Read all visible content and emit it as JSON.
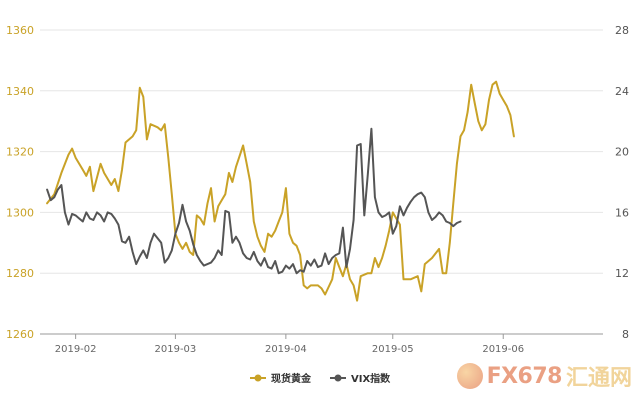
{
  "colors": {
    "gold": "#c9a227",
    "vix": "#555555",
    "grid": "#e6e6e6",
    "axis_left_labels": "#c9a227",
    "axis_right_labels": "#555555"
  },
  "watermark": {
    "logo": "fx678-logo-icon",
    "text": "FX678",
    "cn": "汇通网"
  },
  "chart_data": {
    "type": "line",
    "title": "",
    "xlabel": "",
    "ylabel_left": "",
    "ylabel_right": "",
    "grid": "horizontal",
    "legend_position": "bottom-center",
    "x_ticks": [
      {
        "label": "2019-02",
        "t": 10
      },
      {
        "label": "2019-03",
        "t": 38
      },
      {
        "label": "2019-04",
        "t": 69
      },
      {
        "label": "2019-05",
        "t": 99
      },
      {
        "label": "2019-06",
        "t": 130
      }
    ],
    "x_range": [
      0,
      158
    ],
    "y_left": {
      "ticks": [
        1260,
        1280,
        1300,
        1320,
        1340,
        1360
      ],
      "range": [
        1260,
        1360
      ]
    },
    "y_right": {
      "ticks": [
        8,
        12,
        16,
        20,
        24,
        28
      ],
      "range": [
        8,
        28
      ]
    },
    "series": [
      {
        "name": "现货黄金",
        "axis": "left",
        "points": [
          [
            2,
            1303
          ],
          [
            4,
            1306
          ],
          [
            6,
            1313
          ],
          [
            8,
            1319
          ],
          [
            9,
            1321
          ],
          [
            10,
            1318
          ],
          [
            12,
            1314
          ],
          [
            13,
            1312
          ],
          [
            14,
            1315
          ],
          [
            15,
            1307
          ],
          [
            17,
            1316
          ],
          [
            18,
            1313
          ],
          [
            20,
            1309
          ],
          [
            21,
            1311
          ],
          [
            22,
            1307
          ],
          [
            23,
            1314
          ],
          [
            24,
            1323
          ],
          [
            26,
            1325
          ],
          [
            27,
            1327
          ],
          [
            28,
            1341
          ],
          [
            29,
            1338
          ],
          [
            30,
            1324
          ],
          [
            31,
            1329
          ],
          [
            33,
            1328
          ],
          [
            34,
            1327
          ],
          [
            35,
            1329
          ],
          [
            36,
            1318
          ],
          [
            37,
            1306
          ],
          [
            38,
            1293
          ],
          [
            39,
            1290
          ],
          [
            40,
            1288
          ],
          [
            41,
            1290
          ],
          [
            42,
            1287
          ],
          [
            43,
            1286
          ],
          [
            44,
            1299
          ],
          [
            45,
            1298
          ],
          [
            46,
            1296
          ],
          [
            47,
            1303
          ],
          [
            48,
            1308
          ],
          [
            49,
            1297
          ],
          [
            50,
            1302
          ],
          [
            51,
            1304
          ],
          [
            52,
            1306
          ],
          [
            53,
            1313
          ],
          [
            54,
            1310
          ],
          [
            55,
            1315
          ],
          [
            57,
            1322
          ],
          [
            58,
            1316
          ],
          [
            59,
            1310
          ],
          [
            60,
            1297
          ],
          [
            61,
            1292
          ],
          [
            62,
            1289
          ],
          [
            63,
            1287
          ],
          [
            64,
            1293
          ],
          [
            65,
            1292
          ],
          [
            66,
            1294
          ],
          [
            67,
            1297
          ],
          [
            68,
            1300
          ],
          [
            69,
            1308
          ],
          [
            70,
            1293
          ],
          [
            71,
            1290
          ],
          [
            72,
            1289
          ],
          [
            73,
            1286
          ],
          [
            74,
            1276
          ],
          [
            75,
            1275
          ],
          [
            76,
            1276
          ],
          [
            78,
            1276
          ],
          [
            79,
            1275
          ],
          [
            80,
            1273
          ],
          [
            82,
            1278
          ],
          [
            83,
            1285
          ],
          [
            84,
            1282
          ],
          [
            85,
            1279
          ],
          [
            86,
            1283
          ],
          [
            87,
            1278
          ],
          [
            88,
            1276
          ],
          [
            89,
            1271
          ],
          [
            90,
            1279
          ],
          [
            92,
            1280
          ],
          [
            93,
            1280
          ],
          [
            94,
            1285
          ],
          [
            95,
            1282
          ],
          [
            96,
            1285
          ],
          [
            97,
            1289
          ],
          [
            98,
            1294
          ],
          [
            99,
            1300
          ],
          [
            100,
            1298
          ],
          [
            101,
            1296
          ],
          [
            102,
            1278
          ],
          [
            104,
            1278
          ],
          [
            106,
            1279
          ],
          [
            107,
            1274
          ],
          [
            108,
            1283
          ],
          [
            110,
            1285
          ],
          [
            112,
            1288
          ],
          [
            113,
            1280
          ],
          [
            114,
            1280
          ],
          [
            115,
            1290
          ],
          [
            116,
            1303
          ],
          [
            117,
            1316
          ],
          [
            118,
            1325
          ],
          [
            119,
            1327
          ],
          [
            120,
            1333
          ],
          [
            121,
            1342
          ],
          [
            122,
            1336
          ],
          [
            123,
            1330
          ],
          [
            124,
            1327
          ],
          [
            125,
            1329
          ],
          [
            126,
            1337
          ],
          [
            127,
            1342
          ],
          [
            128,
            1343
          ],
          [
            129,
            1339
          ],
          [
            130,
            1337
          ],
          [
            131,
            1335
          ],
          [
            132,
            1332
          ],
          [
            133,
            1325
          ]
        ]
      },
      {
        "name": "VIX指数",
        "axis": "right",
        "points": [
          [
            2,
            17.5
          ],
          [
            3,
            16.8
          ],
          [
            4,
            17.0
          ],
          [
            5,
            17.5
          ],
          [
            6,
            17.8
          ],
          [
            7,
            16.0
          ],
          [
            8,
            15.2
          ],
          [
            9,
            15.9
          ],
          [
            10,
            15.8
          ],
          [
            11,
            15.6
          ],
          [
            12,
            15.4
          ],
          [
            13,
            16.0
          ],
          [
            14,
            15.6
          ],
          [
            15,
            15.5
          ],
          [
            16,
            16.0
          ],
          [
            17,
            15.8
          ],
          [
            18,
            15.4
          ],
          [
            19,
            16.0
          ],
          [
            20,
            15.9
          ],
          [
            21,
            15.6
          ],
          [
            22,
            15.2
          ],
          [
            23,
            14.1
          ],
          [
            24,
            14.0
          ],
          [
            25,
            14.4
          ],
          [
            26,
            13.4
          ],
          [
            27,
            12.6
          ],
          [
            28,
            13.1
          ],
          [
            29,
            13.5
          ],
          [
            30,
            13.0
          ],
          [
            31,
            14.0
          ],
          [
            32,
            14.6
          ],
          [
            33,
            14.3
          ],
          [
            34,
            14.0
          ],
          [
            35,
            12.7
          ],
          [
            36,
            13.0
          ],
          [
            37,
            13.5
          ],
          [
            38,
            14.6
          ],
          [
            39,
            15.3
          ],
          [
            40,
            16.5
          ],
          [
            41,
            15.4
          ],
          [
            42,
            14.8
          ],
          [
            43,
            13.9
          ],
          [
            44,
            13.2
          ],
          [
            45,
            12.8
          ],
          [
            46,
            12.5
          ],
          [
            47,
            12.6
          ],
          [
            48,
            12.7
          ],
          [
            49,
            13.0
          ],
          [
            50,
            13.5
          ],
          [
            51,
            13.2
          ],
          [
            52,
            16.1
          ],
          [
            53,
            16.0
          ],
          [
            54,
            14.0
          ],
          [
            55,
            14.4
          ],
          [
            56,
            14.0
          ],
          [
            57,
            13.3
          ],
          [
            58,
            13.0
          ],
          [
            59,
            12.9
          ],
          [
            60,
            13.4
          ],
          [
            61,
            12.8
          ],
          [
            62,
            12.5
          ],
          [
            63,
            13.0
          ],
          [
            64,
            12.4
          ],
          [
            65,
            12.3
          ],
          [
            66,
            12.8
          ],
          [
            67,
            12.0
          ],
          [
            68,
            12.1
          ],
          [
            69,
            12.5
          ],
          [
            70,
            12.3
          ],
          [
            71,
            12.6
          ],
          [
            72,
            12.0
          ],
          [
            73,
            12.2
          ],
          [
            74,
            12.1
          ],
          [
            75,
            12.8
          ],
          [
            76,
            12.5
          ],
          [
            77,
            12.9
          ],
          [
            78,
            12.4
          ],
          [
            79,
            12.5
          ],
          [
            80,
            13.3
          ],
          [
            81,
            12.6
          ],
          [
            82,
            13.0
          ],
          [
            83,
            13.2
          ],
          [
            84,
            13.3
          ],
          [
            85,
            15.0
          ],
          [
            86,
            12.4
          ],
          [
            87,
            13.6
          ],
          [
            88,
            15.5
          ],
          [
            89,
            20.4
          ],
          [
            90,
            20.5
          ],
          [
            91,
            15.8
          ],
          [
            92,
            18.5
          ],
          [
            93,
            21.5
          ],
          [
            94,
            17.0
          ],
          [
            95,
            16.0
          ],
          [
            96,
            15.7
          ],
          [
            97,
            15.8
          ],
          [
            98,
            16.0
          ],
          [
            99,
            14.6
          ],
          [
            100,
            15.1
          ],
          [
            101,
            16.4
          ],
          [
            102,
            15.8
          ],
          [
            103,
            16.3
          ],
          [
            104,
            16.7
          ],
          [
            105,
            17.0
          ],
          [
            106,
            17.2
          ],
          [
            107,
            17.3
          ],
          [
            108,
            17.0
          ],
          [
            109,
            16.0
          ],
          [
            110,
            15.5
          ],
          [
            111,
            15.7
          ],
          [
            112,
            16.0
          ],
          [
            113,
            15.8
          ],
          [
            114,
            15.4
          ],
          [
            115,
            15.3
          ],
          [
            116,
            15.1
          ],
          [
            117,
            15.3
          ],
          [
            118,
            15.4
          ]
        ]
      }
    ]
  }
}
